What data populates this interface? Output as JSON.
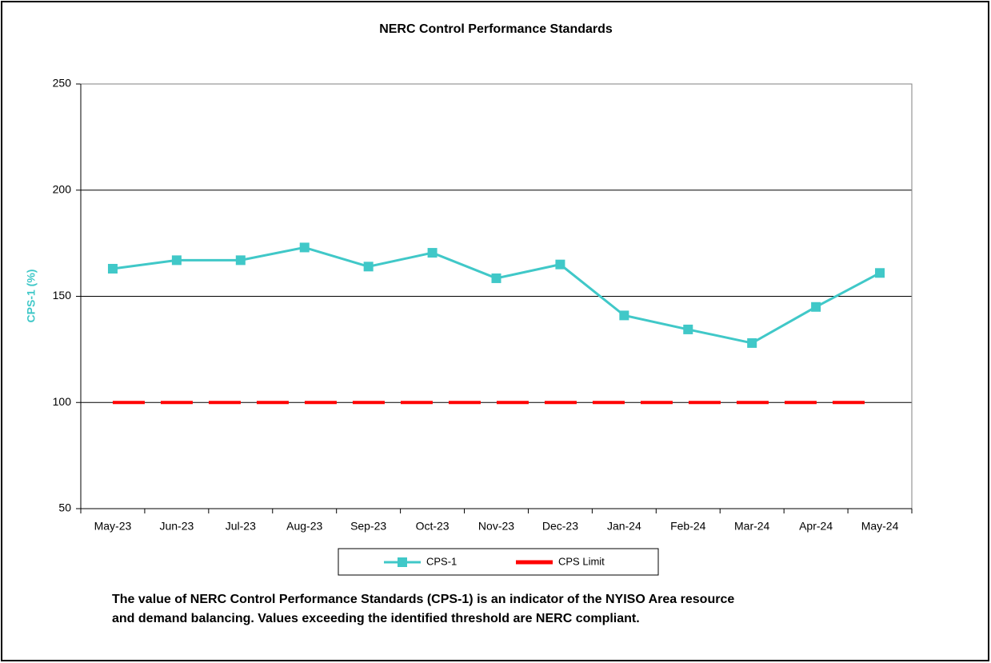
{
  "chart_data": {
    "type": "line",
    "title": "NERC Control Performance Standards",
    "y_label": "CPS-1 (%)",
    "y_label_color": "#40c8c8",
    "categories": [
      "May-23",
      "Jun-23",
      "Jul-23",
      "Aug-23",
      "Sep-23",
      "Oct-23",
      "Nov-23",
      "Dec-23",
      "Jan-24",
      "Feb-24",
      "Mar-24",
      "Apr-24",
      "May-24"
    ],
    "series": [
      {
        "name": "CPS-1",
        "color": "#40c8c8",
        "marker": "square",
        "dashed": false,
        "values": [
          163,
          167,
          167,
          173,
          164,
          170.5,
          158.5,
          165,
          141,
          134.4,
          128,
          145,
          161
        ]
      },
      {
        "name": "CPS Limit",
        "color": "#ff0000",
        "marker": null,
        "dashed": true,
        "values": [
          100,
          100,
          100,
          100,
          100,
          100,
          100,
          100,
          100,
          100,
          100,
          100,
          100
        ]
      }
    ],
    "ylim": [
      50,
      250
    ],
    "yticks": [
      50,
      100,
      150,
      200,
      250
    ],
    "grid": true,
    "legend": "bottom",
    "annotations": [
      "The value of NERC Control Performance Standards (CPS-1) is an indicator of the NYISO Area resource",
      "and demand balancing. Values exceeding the identified threshold are NERC compliant."
    ]
  }
}
